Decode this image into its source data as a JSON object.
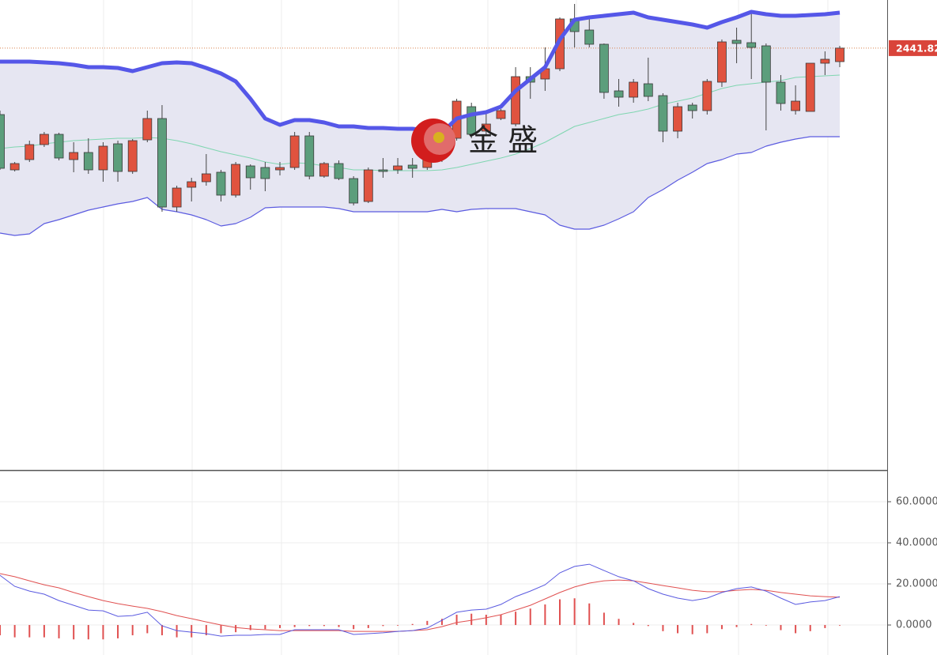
{
  "chart_data": [
    {
      "type": "candlestick",
      "ylim": [
        2335,
        2454
      ],
      "up_color": "#e0533f",
      "down_color": "#5c9e7c",
      "last_price": 2441.82,
      "watermark": "金 盛",
      "ohlc": [
        [
          2425.0,
          2426.0,
          2411.0,
          2411.4
        ],
        [
          2411.0,
          2413.0,
          2410.6,
          2412.6
        ],
        [
          2413.6,
          2418.4,
          2413.0,
          2417.4
        ],
        [
          2417.4,
          2420.6,
          2416.8,
          2420.0
        ],
        [
          2420.0,
          2420.4,
          2413.4,
          2414.0
        ],
        [
          2413.6,
          2418.0,
          2410.4,
          2415.4
        ],
        [
          2415.4,
          2419.0,
          2410.0,
          2411.0
        ],
        [
          2411.0,
          2418.0,
          2408.0,
          2417.0
        ],
        [
          2417.6,
          2418.4,
          2408.0,
          2410.6
        ],
        [
          2410.6,
          2418.8,
          2410.0,
          2418.4
        ],
        [
          2418.6,
          2426.0,
          2418.0,
          2424.0
        ],
        [
          2424.0,
          2427.4,
          2400.4,
          2401.6
        ],
        [
          2401.6,
          2407.0,
          2400.4,
          2406.4
        ],
        [
          2406.6,
          2409.0,
          2403.0,
          2408.0
        ],
        [
          2408.0,
          2415.0,
          2407.0,
          2410.0
        ],
        [
          2410.4,
          2411.0,
          2403.0,
          2404.6
        ],
        [
          2404.6,
          2413.0,
          2404.0,
          2412.4
        ],
        [
          2412.0,
          2412.4,
          2406.0,
          2409.0
        ],
        [
          2411.6,
          2413.0,
          2405.6,
          2408.8
        ],
        [
          2411.0,
          2413.0,
          2409.6,
          2411.6
        ],
        [
          2411.6,
          2420.6,
          2411.0,
          2419.6
        ],
        [
          2419.6,
          2420.6,
          2408.6,
          2409.4
        ],
        [
          2409.4,
          2413.0,
          2409.0,
          2412.6
        ],
        [
          2412.6,
          2413.4,
          2408.4,
          2408.8
        ],
        [
          2408.8,
          2409.4,
          2402.0,
          2402.6
        ],
        [
          2403.0,
          2411.6,
          2402.6,
          2411.0
        ],
        [
          2411.0,
          2414.0,
          2409.0,
          2410.6
        ],
        [
          2411.0,
          2414.0,
          2410.0,
          2412.0
        ],
        [
          2412.2,
          2414.0,
          2409.0,
          2411.4
        ],
        [
          2411.6,
          2415.0,
          2411.0,
          2414.0
        ],
        [
          2414.0,
          2421.0,
          2413.0,
          2420.0
        ],
        [
          2419.0,
          2429.0,
          2418.4,
          2428.4
        ],
        [
          2427.0,
          2428.0,
          2419.0,
          2420.0
        ],
        [
          2420.8,
          2426.0,
          2420.0,
          2422.6
        ],
        [
          2424.0,
          2426.4,
          2423.6,
          2426.0
        ],
        [
          2422.6,
          2437.0,
          2422.0,
          2434.6
        ],
        [
          2434.6,
          2437.0,
          2429.0,
          2433.2
        ],
        [
          2434.0,
          2442.0,
          2431.0,
          2436.6
        ],
        [
          2436.6,
          2449.6,
          2436.0,
          2449.2
        ],
        [
          2449.2,
          2453.0,
          2442.0,
          2446.0
        ],
        [
          2446.4,
          2450.0,
          2442.0,
          2442.8
        ],
        [
          2442.8,
          2443.0,
          2429.0,
          2430.6
        ],
        [
          2431.0,
          2434.0,
          2427.0,
          2429.4
        ],
        [
          2429.4,
          2434.0,
          2428.0,
          2433.2
        ],
        [
          2432.8,
          2439.4,
          2428.4,
          2429.6
        ],
        [
          2429.8,
          2430.4,
          2418.0,
          2420.8
        ],
        [
          2420.8,
          2428.0,
          2419.0,
          2427.0
        ],
        [
          2427.4,
          2428.0,
          2424.0,
          2426.0
        ],
        [
          2426.0,
          2434.0,
          2425.0,
          2433.4
        ],
        [
          2433.2,
          2444.0,
          2432.0,
          2443.4
        ],
        [
          2443.8,
          2447.0,
          2438.0,
          2443.0
        ],
        [
          2443.2,
          2451.0,
          2434.0,
          2442.0
        ],
        [
          2442.4,
          2443.0,
          2421.0,
          2433.2
        ],
        [
          2433.2,
          2435.0,
          2426.0,
          2427.8
        ],
        [
          2426.0,
          2432.4,
          2425.0,
          2428.4
        ],
        [
          2425.8,
          2438.0,
          2425.8,
          2438.0
        ],
        [
          2438.0,
          2441.0,
          2435.0,
          2439.0
        ],
        [
          2438.4,
          2442.4,
          2437.0,
          2441.82
        ]
      ],
      "bands": {
        "upper_color": "#5557e8",
        "middle_color": "#7fd6b0",
        "lower_color": "#5b5be0",
        "fill_color": "#e6e6f2",
        "upper": [
          2438.4,
          2438.4,
          2438.4,
          2438.2,
          2438.0,
          2437.6,
          2437.0,
          2437.0,
          2436.8,
          2436.0,
          2437.0,
          2438.0,
          2438.2,
          2438.0,
          2436.8,
          2435.4,
          2433.4,
          2429.0,
          2424.0,
          2422.4,
          2423.6,
          2423.6,
          2423.0,
          2422.0,
          2422.0,
          2421.6,
          2421.6,
          2421.4,
          2421.4,
          2421.0,
          2420.4,
          2424.0,
          2425.0,
          2425.6,
          2427.0,
          2431.0,
          2434.0,
          2437.0,
          2444.0,
          2449.0,
          2449.6,
          2450.0,
          2450.4,
          2450.8,
          2449.6,
          2449.0,
          2448.4,
          2447.8,
          2447.0,
          2448.4,
          2449.6,
          2451.0,
          2450.4,
          2450.0,
          2450.0,
          2450.2,
          2450.4,
          2450.8
        ],
        "middle": [
          2416.4,
          2416.8,
          2417.0,
          2417.6,
          2418.0,
          2418.4,
          2418.6,
          2418.8,
          2419.0,
          2419.0,
          2419.2,
          2419.0,
          2418.4,
          2417.6,
          2416.6,
          2415.6,
          2414.8,
          2414.0,
          2413.0,
          2412.4,
          2412.8,
          2412.6,
          2412.0,
          2411.6,
          2411.0,
          2411.0,
          2410.8,
          2410.8,
          2410.8,
          2410.8,
          2411.0,
          2411.6,
          2412.4,
          2413.2,
          2414.0,
          2415.0,
          2416.4,
          2418.0,
          2420.0,
          2422.0,
          2423.0,
          2424.0,
          2425.0,
          2425.6,
          2426.4,
          2427.6,
          2428.4,
          2429.2,
          2430.4,
          2431.6,
          2432.4,
          2432.8,
          2433.2,
          2433.6,
          2434.4,
          2434.6,
          2434.8,
          2435.0
        ],
        "lower": [
          2395.0,
          2394.4,
          2394.8,
          2397.4,
          2398.4,
          2399.6,
          2400.8,
          2401.6,
          2402.4,
          2403.0,
          2404.0,
          2401.0,
          2400.4,
          2399.6,
          2398.4,
          2396.8,
          2397.4,
          2399.0,
          2401.4,
          2401.6,
          2401.6,
          2401.6,
          2401.6,
          2401.2,
          2400.4,
          2400.4,
          2400.4,
          2400.4,
          2400.4,
          2400.4,
          2401.0,
          2400.4,
          2401.0,
          2401.2,
          2401.2,
          2401.2,
          2400.4,
          2399.6,
          2397.0,
          2396.0,
          2396.0,
          2397.0,
          2398.6,
          2400.4,
          2404.0,
          2406.0,
          2408.4,
          2410.4,
          2412.6,
          2413.6,
          2415.0,
          2415.4,
          2417.0,
          2418.0,
          2418.8,
          2419.4,
          2419.4,
          2419.4
        ]
      }
    },
    {
      "type": "macd",
      "ylim": [
        -14.6,
        75
      ],
      "yticks": [
        {
          "value": 60,
          "label": "60.0000"
        },
        {
          "value": 40,
          "label": "40.0000"
        },
        {
          "value": 20,
          "label": "20.0000"
        },
        {
          "value": 0,
          "label": "0.0000"
        }
      ],
      "grid": true,
      "dif_color": "#5a5ae0",
      "dea_color": "#e05050",
      "hist_color": "#e05050",
      "dif": [
        24.2,
        18.8,
        16.5,
        15.0,
        11.9,
        9.6,
        7.3,
        6.9,
        4.2,
        4.6,
        6.2,
        -0.4,
        -2.7,
        -3.5,
        -4.2,
        -5.4,
        -5.0,
        -5.0,
        -4.6,
        -4.6,
        -2.3,
        -2.3,
        -2.3,
        -2.3,
        -4.6,
        -4.2,
        -3.8,
        -3.1,
        -2.7,
        -1.5,
        2.3,
        6.2,
        7.3,
        7.7,
        10.0,
        13.8,
        16.5,
        19.6,
        25.4,
        28.5,
        29.6,
        26.5,
        23.5,
        21.5,
        17.7,
        15.0,
        13.1,
        11.9,
        13.1,
        15.8,
        17.7,
        18.5,
        16.5,
        13.1,
        10.0,
        11.2,
        11.9,
        13.8
      ],
      "dea": [
        25.0,
        23.5,
        21.5,
        19.6,
        18.1,
        15.8,
        13.8,
        11.9,
        10.4,
        9.2,
        8.1,
        6.5,
        4.6,
        3.1,
        1.5,
        0,
        -1.2,
        -1.9,
        -2.3,
        -2.7,
        -2.7,
        -2.7,
        -2.7,
        -2.7,
        -3.1,
        -3.1,
        -3.1,
        -3.1,
        -2.7,
        -2.3,
        -0.8,
        1.2,
        2.3,
        3.5,
        5.0,
        7.3,
        9.6,
        12.7,
        15.8,
        18.5,
        20.4,
        21.5,
        21.9,
        21.5,
        20.4,
        19.2,
        18.1,
        16.9,
        16.2,
        16.2,
        16.9,
        17.3,
        16.9,
        15.8,
        15.0,
        14.2,
        13.8,
        13.5
      ],
      "histogram": [
        -5,
        -6,
        -6,
        -6,
        -6.5,
        -7,
        -7,
        -7,
        -6.5,
        -5,
        -4,
        -5,
        -6,
        -6,
        -5,
        -4,
        -3.5,
        -2.5,
        -2,
        -1.5,
        -1,
        -0.5,
        -0.5,
        -1,
        -2,
        -1.5,
        -0.5,
        -0.3,
        0.5,
        2,
        3,
        5,
        5.5,
        5,
        5,
        6.5,
        8,
        10,
        12.5,
        13,
        10.5,
        6,
        3,
        1,
        -0.5,
        -3,
        -4,
        -4.5,
        -4,
        -2,
        -1,
        0.5,
        -0.3,
        -2.5,
        -4,
        -3,
        -1.5,
        -0.3
      ]
    }
  ]
}
